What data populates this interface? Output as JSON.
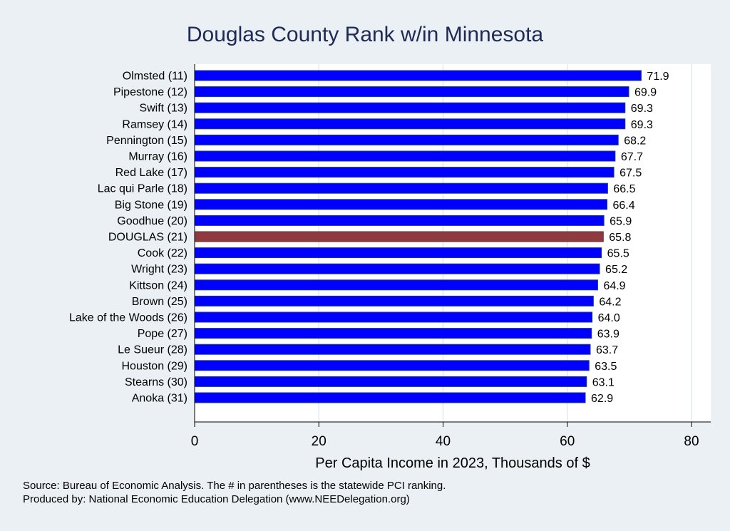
{
  "chart_data": {
    "type": "bar",
    "orientation": "horizontal",
    "title": "Douglas County Rank w/in Minnesota",
    "xlabel": "Per Capita Income in 2023, Thousands of $",
    "ylabel": "",
    "xlim": [
      0,
      83
    ],
    "xticks": [
      0,
      20,
      40,
      60,
      80
    ],
    "grid": true,
    "categories": [
      "Olmsted (11)",
      "Pipestone (12)",
      "Swift (13)",
      "Ramsey (14)",
      "Pennington (15)",
      "Murray (16)",
      "Red Lake (17)",
      "Lac qui Parle (18)",
      "Big Stone (19)",
      "Goodhue (20)",
      "DOUGLAS (21)",
      "Cook (22)",
      "Wright (23)",
      "Kittson (24)",
      "Brown (25)",
      "Lake of the Woods (26)",
      "Pope (27)",
      "Le Sueur (28)",
      "Houston (29)",
      "Stearns (30)",
      "Anoka (31)"
    ],
    "values": [
      71.9,
      69.9,
      69.3,
      69.3,
      68.2,
      67.7,
      67.5,
      66.5,
      66.4,
      65.9,
      65.8,
      65.5,
      65.2,
      64.9,
      64.2,
      64.0,
      63.9,
      63.7,
      63.5,
      63.1,
      62.9
    ],
    "value_labels": [
      "71.9",
      "69.9",
      "69.3",
      "69.3",
      "68.2",
      "67.7",
      "67.5",
      "66.5",
      "66.4",
      "65.9",
      "65.8",
      "65.5",
      "65.2",
      "64.9",
      "64.2",
      "64.0",
      "63.9",
      "63.7",
      "63.5",
      "63.1",
      "62.9"
    ],
    "highlight_index": 10,
    "colors": {
      "bar": "#0000ff",
      "bar_edge": "#1a3a8a",
      "highlight": "#8f3a3f",
      "highlight_edge": "#6e2a2e",
      "background": "#eaf0f3",
      "plot": "#ffffff",
      "grid": "#e3eaee"
    }
  },
  "footer": {
    "source": "Source: Bureau of Economic Analysis. The # in parentheses is the statewide PCI ranking.",
    "produced": "Produced by: National Economic Education Delegation (www.NEEDelegation.org)"
  }
}
